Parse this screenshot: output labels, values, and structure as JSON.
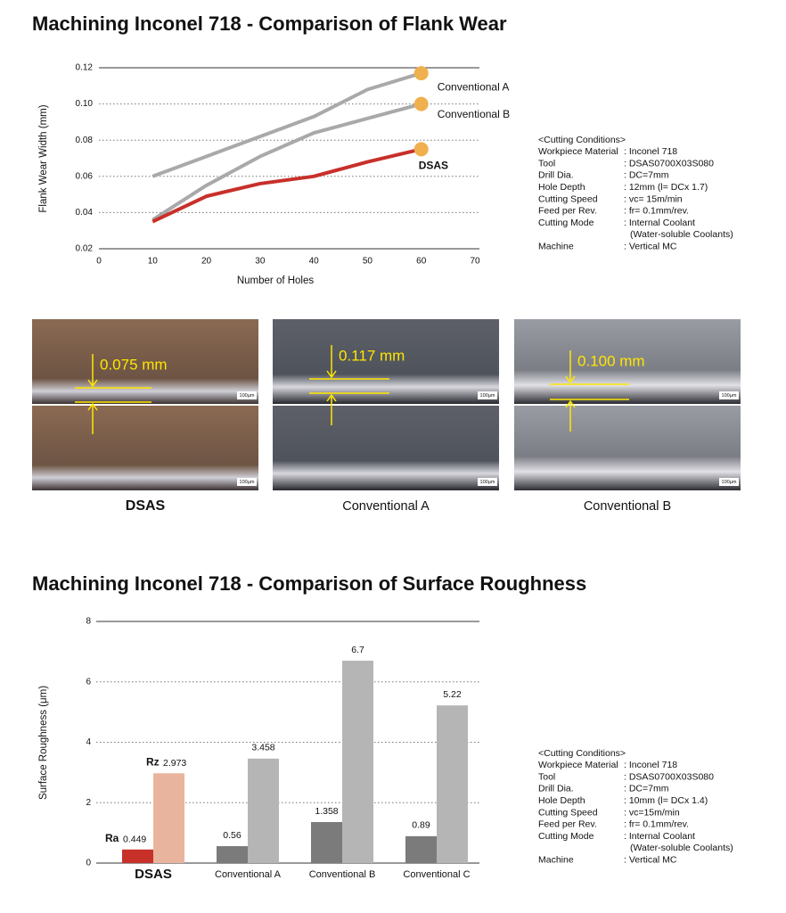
{
  "chart_data": [
    {
      "type": "line",
      "title": "Machining Inconel 718 - Comparison of Flank Wear",
      "x_label": "Number of Holes",
      "y_label": "Flank Wear Width (mm)",
      "x": [
        10,
        20,
        30,
        40,
        50,
        60
      ],
      "series": [
        {
          "name": "Conventional A",
          "color": "#a9a9a9",
          "values": [
            0.06,
            0.071,
            0.082,
            0.093,
            0.108,
            0.117
          ]
        },
        {
          "name": "Conventional B",
          "color": "#a9a9a9",
          "values": [
            0.036,
            0.055,
            0.071,
            0.084,
            0.092,
            0.1
          ]
        },
        {
          "name": "DSAS",
          "color": "#c8302a",
          "values": [
            0.035,
            0.049,
            0.056,
            0.06,
            0.068,
            0.075
          ]
        }
      ],
      "marker_color": "#f0b04e",
      "xlim": [
        0,
        70
      ],
      "xticks": [
        0,
        10,
        20,
        30,
        40,
        50,
        60,
        70
      ],
      "ylim": [
        0.02,
        0.12
      ],
      "yticks": [
        0.02,
        0.04,
        0.06,
        0.08,
        {
          "value": 0.1,
          "label": "0.10"
        },
        0.12
      ],
      "grid": true
    },
    {
      "type": "bar",
      "title": "Machining Inconel 718 - Comparison of Surface Roughness",
      "y_label": "Surface Roughness (μm)",
      "categories": [
        "DSAS",
        "Conventional A",
        "Conventional B",
        "Conventional C"
      ],
      "series": [
        {
          "name": "Ra",
          "colors": [
            "#c8302a",
            "#7b7b7b",
            "#7b7b7b",
            "#7b7b7b"
          ],
          "values": [
            0.449,
            0.56,
            1.358,
            0.89
          ]
        },
        {
          "name": "Rz",
          "colors": [
            "#e9b49e",
            "#b5b5b5",
            "#b5b5b5",
            "#b5b5b5"
          ],
          "values": [
            2.973,
            3.458,
            6.7,
            5.22
          ]
        }
      ],
      "ylim": [
        0,
        8
      ],
      "yticks": [
        0,
        2,
        4,
        6,
        8
      ],
      "grid": true
    }
  ],
  "photos": [
    {
      "label": "DSAS",
      "measurement": "0.075 mm",
      "scale": "100µm"
    },
    {
      "label": "Conventional A",
      "measurement": "0.117 mm",
      "scale": "100µm"
    },
    {
      "label": "Conventional B",
      "measurement": "0.100 mm",
      "scale": "100µm"
    }
  ],
  "conditions": [
    {
      "heading": "<Cutting Conditions>",
      "rows": [
        {
          "label": "Workpiece Material",
          "value": [
            ": Inconel 718"
          ]
        },
        {
          "label": "Tool",
          "value": [
            ": DSAS0700X03S080"
          ]
        },
        {
          "label": "Drill Dia.",
          "value": [
            ": DC=7mm"
          ]
        },
        {
          "label": "Hole Depth",
          "value": [
            ": 12mm (l= DCx 1.7)"
          ]
        },
        {
          "label": "Cutting Speed",
          "value": [
            ": vc= 15m/min"
          ]
        },
        {
          "label": "Feed per Rev.",
          "value": [
            ": fr= 0.1mm/rev."
          ]
        },
        {
          "label": "Cutting Mode",
          "value": [
            ": Internal Coolant",
            "(Water-soluble Coolants)"
          ]
        },
        {
          "label": "Machine",
          "value": [
            ": Vertical MC"
          ]
        }
      ]
    },
    {
      "heading": "<Cutting Conditions>",
      "rows": [
        {
          "label": "Workpiece Material",
          "value": [
            ": Inconel 718"
          ]
        },
        {
          "label": "Tool",
          "value": [
            ": DSAS0700X03S080"
          ]
        },
        {
          "label": "Drill Dia.",
          "value": [
            ": DC=7mm"
          ]
        },
        {
          "label": "Hole Depth",
          "value": [
            ": 10mm (l= DCx 1.4)"
          ]
        },
        {
          "label": "Cutting Speed",
          "value": [
            ": vc=15m/min"
          ]
        },
        {
          "label": "Feed per Rev.",
          "value": [
            ": fr= 0.1mm/rev."
          ]
        },
        {
          "label": "Cutting Mode",
          "value": [
            ": Internal Coolant",
            "(Water-soluble Coolants)"
          ]
        },
        {
          "label": "Machine",
          "value": [
            ": Vertical MC"
          ]
        }
      ]
    }
  ]
}
